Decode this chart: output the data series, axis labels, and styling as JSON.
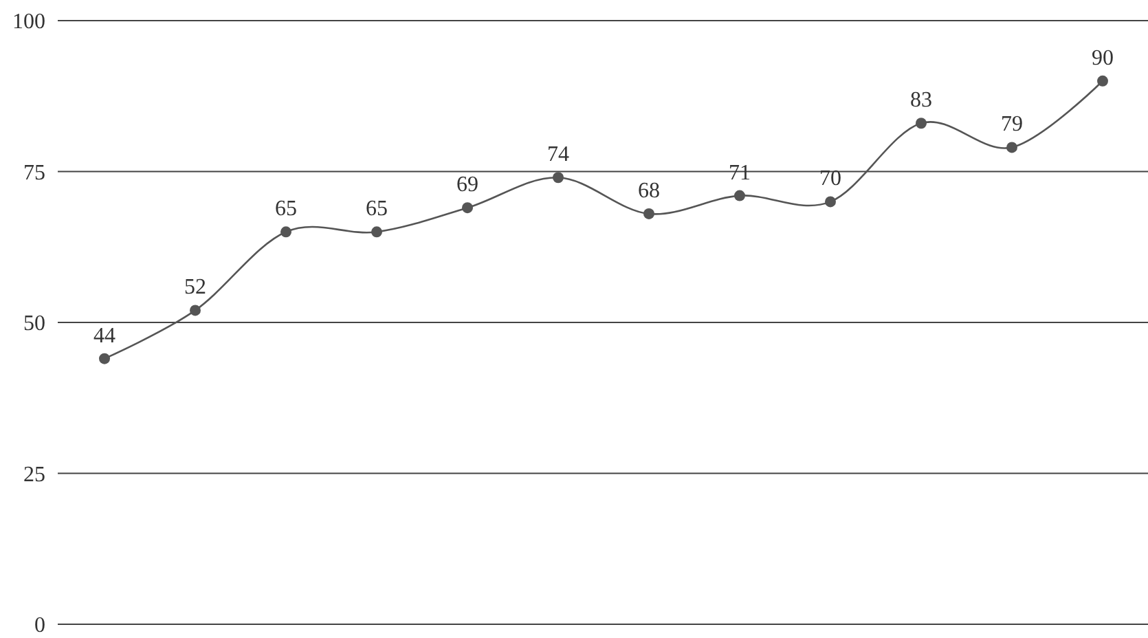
{
  "chart_data": {
    "type": "line",
    "categories": [
      null,
      null,
      null,
      null,
      null,
      null,
      null,
      null,
      null,
      null,
      null,
      null
    ],
    "series": [
      {
        "color": "#555555",
        "values": [
          44,
          52,
          65,
          65,
          69,
          74,
          68,
          71,
          70,
          83,
          79,
          90
        ]
      }
    ],
    "ylim": [
      0,
      100
    ],
    "yticks": [
      0,
      25,
      50,
      75,
      100
    ],
    "grid": "y",
    "data_labels": true,
    "marker": "circle",
    "line_style": "solid",
    "tick_labels": "y"
  }
}
